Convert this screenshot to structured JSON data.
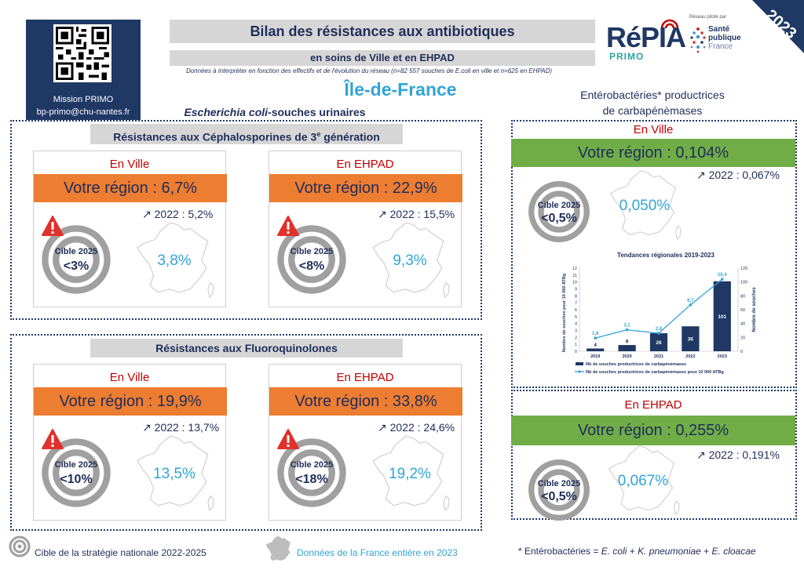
{
  "header": {
    "mission_name": "Mission PRIMO",
    "mission_email": "bp-primo@chu-nantes.fr",
    "title": "Bilan des résistances aux antibiotiques",
    "subtitle": "en soins de Ville et en EHPAD",
    "note": "Données à interpréter en fonction des effectifs et de l'évolution du réseau (n=82 557 souches de E.coli en ville et n=625 en EHPAD)",
    "region": "Île-de-France",
    "year": "2023",
    "pilot_text": "Réseau piloté par",
    "logo_repia": "RéPIA",
    "logo_primo": "PRIMO",
    "logo_sp": [
      "Santé",
      "publique",
      "France"
    ]
  },
  "ecoli": {
    "title_italic": "Escherichia coli",
    "title_rest": "-souches urinaires",
    "c3g": {
      "heading": "Résistances aux Céphalosporines de 3e génération",
      "ville": {
        "label": "En Ville",
        "value": "Votre région : 6,7%",
        "trend": "↗ 2022 : 5,2%",
        "target_line1": "Cible 2025",
        "target_line2": "<3%",
        "france": "3,8%"
      },
      "ehpad": {
        "label": "En EHPAD",
        "value": "Votre région : 22,9%",
        "trend": "↗ 2022 : 15,5%",
        "target_line1": "Cible 2025",
        "target_line2": "<8%",
        "france": "9,3%"
      }
    },
    "fq": {
      "heading": "Résistances aux Fluoroquinolones",
      "ville": {
        "label": "En Ville",
        "value": "Votre région : 19,9%",
        "trend": "↗ 2022 : 13,7%",
        "target_line1": "Cible 2025",
        "target_line2": "<10%",
        "france": "13,5%"
      },
      "ehpad": {
        "label": "En EHPAD",
        "value": "Votre région : 33,8%",
        "trend": "↗ 2022 : 24,6%",
        "target_line1": "Cible 2025",
        "target_line2": "<18%",
        "france": "19,2%"
      }
    }
  },
  "entero": {
    "title_line1": "Entérobactéries* productrices",
    "title_line2": "de carbapénèmases",
    "ville": {
      "label": "En Ville",
      "value": "Votre région : 0,104%",
      "trend": "↗ 2022 : 0,067%",
      "target_line1": "Cible 2025",
      "target_line2": "<0,5%",
      "france": "0,050%"
    },
    "ehpad": {
      "label": "En EHPAD",
      "value": "Votre région : 0,255%",
      "trend": "↗ 2022 : 0,191%",
      "target_line1": "Cible 2025",
      "target_line2": "<0,5%",
      "france": "0,067%"
    }
  },
  "chart_data": {
    "type": "bar",
    "title": "Tendances régionales 2019-2023",
    "categories": [
      "2019",
      "2020",
      "2021",
      "2022",
      "2023"
    ],
    "series": [
      {
        "name": "Nb de souches productrices de carbapénèmases",
        "type": "bar",
        "axis": "right",
        "values": [
          4,
          9,
          26,
          36,
          101
        ]
      },
      {
        "name": "Nb de souches productrices de carbapénèmases pour 10 000 ATBg",
        "type": "line",
        "axis": "left",
        "values": [
          1.9,
          3.1,
          2.6,
          6.7,
          10.4
        ],
        "labels": [
          "1,9",
          "3,1",
          "2,6",
          "6,7",
          "10,4"
        ]
      }
    ],
    "ylabel_left": "Nombre de souches pour 10 000 ATBg",
    "ylabel_right": "Nombre de souches",
    "ylim_left": [
      0,
      12
    ],
    "yticks_left": [
      0,
      1,
      2,
      3,
      4,
      5,
      6,
      7,
      8,
      9,
      10,
      11,
      12
    ],
    "ylim_right": [
      0,
      120
    ],
    "yticks_right": [
      0,
      20,
      40,
      60,
      80,
      100,
      120
    ],
    "legend_position": "bottom",
    "colors": {
      "bar": "#1f3864",
      "line": "#31a4d6"
    }
  },
  "footer": {
    "target_text": "Cible de la stratégie nationale 2022-2025",
    "france_text": "Données de la France entière en 2023",
    "entero_prefix": "* Entérobactéries = ",
    "entero_species": [
      "E. coli",
      "K. pneumoniae",
      "E. cloacae"
    ],
    "plus": " + "
  },
  "colors": {
    "navy": "#1f3864",
    "orange": "#ed7d31",
    "green": "#70ad47",
    "light_blue": "#31a4d6",
    "red": "#c00000",
    "grey": "#d6d6d6"
  }
}
